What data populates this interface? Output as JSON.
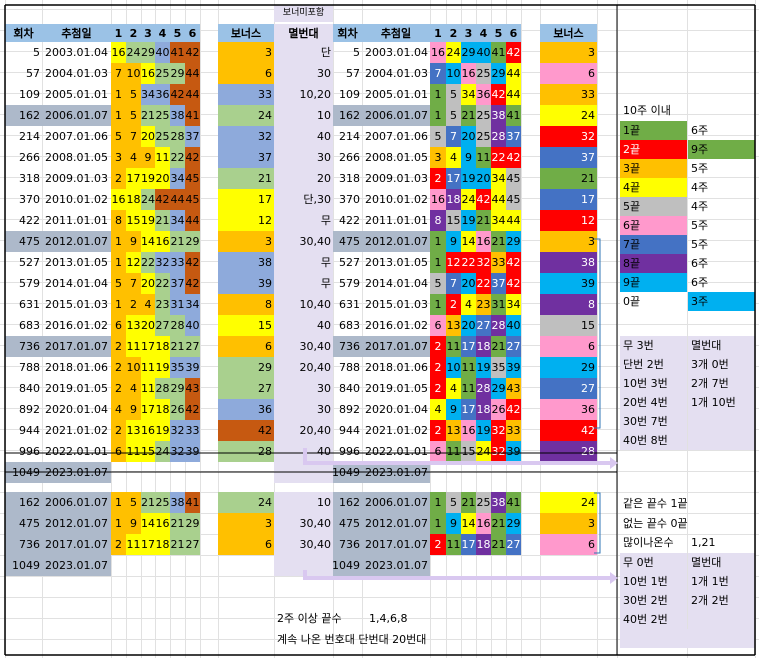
{
  "headers": {
    "round": "회차",
    "date": "추첨일",
    "n1": "1",
    "n2": "2",
    "n3": "3",
    "n4": "4",
    "n5": "5",
    "n6": "6",
    "bonus": "보너스",
    "exclude": "멸번대",
    "bonus_note": "보너미포함"
  },
  "colors": {
    "c1": "#70ad47",
    "c2": "#ff0000",
    "c3": "#ffc000",
    "c4": "#ffff00",
    "c5": "#bfbfbf",
    "c6": "#ff99cc",
    "c7": "#4472c4",
    "c8": "#7030a0",
    "c9": "#00b0f0",
    "c0": "#00b0f0",
    "yellow": "#ffff00",
    "gold": "#ffc000",
    "blue": "#8eaadb",
    "green": "#a9d08e",
    "brown": "#c65911",
    "lav": "#e4dff1",
    "grey": "#adb9ca",
    "header_blue": "#9bc2e6"
  },
  "rows": [
    {
      "round": "5",
      "date": "2003.01.04",
      "nums": [
        "16",
        "24",
        "29",
        "40",
        "41",
        "42"
      ],
      "bonus": "3",
      "excl": "단",
      "hl": false
    },
    {
      "round": "57",
      "date": "2004.01.03",
      "nums": [
        "7",
        "10",
        "16",
        "25",
        "29",
        "44"
      ],
      "bonus": "6",
      "excl": "30",
      "hl": false
    },
    {
      "round": "109",
      "date": "2005.01.01",
      "nums": [
        "1",
        "5",
        "34",
        "36",
        "42",
        "44"
      ],
      "bonus": "33",
      "excl": "10,20",
      "hl": false
    },
    {
      "round": "162",
      "date": "2006.01.07",
      "nums": [
        "1",
        "5",
        "21",
        "25",
        "38",
        "41"
      ],
      "bonus": "24",
      "excl": "10",
      "hl": true
    },
    {
      "round": "214",
      "date": "2007.01.06",
      "nums": [
        "5",
        "7",
        "20",
        "25",
        "28",
        "37"
      ],
      "bonus": "32",
      "excl": "40",
      "hl": false
    },
    {
      "round": "266",
      "date": "2008.01.05",
      "nums": [
        "3",
        "4",
        "9",
        "11",
        "22",
        "42"
      ],
      "bonus": "37",
      "excl": "30",
      "hl": false
    },
    {
      "round": "318",
      "date": "2009.01.03",
      "nums": [
        "2",
        "17",
        "19",
        "20",
        "34",
        "45"
      ],
      "bonus": "21",
      "excl": "20",
      "hl": false
    },
    {
      "round": "370",
      "date": "2010.01.02",
      "nums": [
        "16",
        "18",
        "24",
        "42",
        "44",
        "45"
      ],
      "bonus": "17",
      "excl": "단,30",
      "hl": false
    },
    {
      "round": "422",
      "date": "2011.01.01",
      "nums": [
        "8",
        "15",
        "19",
        "21",
        "34",
        "44"
      ],
      "bonus": "12",
      "excl": "무",
      "hl": false
    },
    {
      "round": "475",
      "date": "2012.01.07",
      "nums": [
        "1",
        "9",
        "14",
        "16",
        "21",
        "29"
      ],
      "bonus": "3",
      "excl": "30,40",
      "hl": true
    },
    {
      "round": "527",
      "date": "2013.01.05",
      "nums": [
        "1",
        "12",
        "22",
        "32",
        "33",
        "42"
      ],
      "bonus": "38",
      "excl": "무",
      "hl": false
    },
    {
      "round": "579",
      "date": "2014.01.04",
      "nums": [
        "5",
        "7",
        "20",
        "22",
        "37",
        "42"
      ],
      "bonus": "39",
      "excl": "무",
      "hl": false
    },
    {
      "round": "631",
      "date": "2015.01.03",
      "nums": [
        "1",
        "2",
        "4",
        "23",
        "31",
        "34"
      ],
      "bonus": "8",
      "excl": "10,40",
      "hl": false
    },
    {
      "round": "683",
      "date": "2016.01.02",
      "nums": [
        "6",
        "13",
        "20",
        "27",
        "28",
        "40"
      ],
      "bonus": "15",
      "excl": "40",
      "hl": false
    },
    {
      "round": "736",
      "date": "2017.01.07",
      "nums": [
        "2",
        "11",
        "17",
        "18",
        "21",
        "27"
      ],
      "bonus": "6",
      "excl": "30,40",
      "hl": true
    },
    {
      "round": "788",
      "date": "2018.01.06",
      "nums": [
        "2",
        "10",
        "11",
        "19",
        "35",
        "39"
      ],
      "bonus": "29",
      "excl": "20,40",
      "hl": false
    },
    {
      "round": "840",
      "date": "2019.01.05",
      "nums": [
        "2",
        "4",
        "11",
        "28",
        "29",
        "43"
      ],
      "bonus": "27",
      "excl": "30",
      "hl": false
    },
    {
      "round": "892",
      "date": "2020.01.04",
      "nums": [
        "4",
        "9",
        "17",
        "18",
        "26",
        "42"
      ],
      "bonus": "36",
      "excl": "30",
      "hl": false
    },
    {
      "round": "944",
      "date": "2021.01.02",
      "nums": [
        "2",
        "13",
        "16",
        "19",
        "32",
        "33"
      ],
      "bonus": "42",
      "excl": "20,40",
      "hl": false
    },
    {
      "round": "996",
      "date": "2022.01.01",
      "nums": [
        "6",
        "11",
        "15",
        "24",
        "32",
        "39"
      ],
      "bonus": "28",
      "excl": "40",
      "hl": false
    },
    {
      "round": "1049",
      "date": "2023.01.07",
      "nums": [
        "",
        "",
        "",
        "",
        "",
        ""
      ],
      "bonus": "",
      "excl": "",
      "hl": true
    }
  ],
  "bottom_rows": [
    {
      "round": "162",
      "date": "2006.01.07",
      "nums": [
        "1",
        "5",
        "21",
        "25",
        "38",
        "41"
      ],
      "bonus": "24",
      "excl": "10"
    },
    {
      "round": "475",
      "date": "2012.01.07",
      "nums": [
        "1",
        "9",
        "14",
        "16",
        "21",
        "29"
      ],
      "bonus": "3",
      "excl": "30,40"
    },
    {
      "round": "736",
      "date": "2017.01.07",
      "nums": [
        "2",
        "11",
        "17",
        "18",
        "21",
        "27"
      ],
      "bonus": "6",
      "excl": "30,40"
    },
    {
      "round": "1049",
      "date": "2023.01.07",
      "nums": [
        "",
        "",
        "",
        "",
        "",
        ""
      ],
      "bonus": "",
      "excl": ""
    }
  ],
  "legend": {
    "title": "10주 이내",
    "items": [
      {
        "label": "1끝",
        "count": "6주",
        "color": "#70ad47",
        "count_color": ""
      },
      {
        "label": "2끝",
        "count": "9주",
        "color": "#ff0000",
        "count_color": "#70ad47"
      },
      {
        "label": "3끝",
        "count": "5주",
        "color": "#ffc000",
        "count_color": ""
      },
      {
        "label": "4끝",
        "count": "4주",
        "color": "#ffff00",
        "count_color": ""
      },
      {
        "label": "5끝",
        "count": "4주",
        "color": "#bfbfbf",
        "count_color": ""
      },
      {
        "label": "6끝",
        "count": "5주",
        "color": "#ff99cc",
        "count_color": ""
      },
      {
        "label": "7끝",
        "count": "5주",
        "color": "#4472c4",
        "count_color": ""
      },
      {
        "label": "8끝",
        "count": "6주",
        "color": "#7030a0",
        "count_color": ""
      },
      {
        "label": "9끝",
        "count": "6주",
        "color": "#00b0f0",
        "count_color": ""
      },
      {
        "label": "0끝",
        "count": "3주",
        "color": "#ffffff",
        "count_color": "#00b0f0"
      }
    ]
  },
  "stats1": [
    [
      "무 3번",
      "멸번대"
    ],
    [
      "단번 2번",
      "3개 0번"
    ],
    [
      "10번 3번",
      "2개 7번"
    ],
    [
      "20번 4번",
      "1개 10번"
    ],
    [
      "30번 7번",
      ""
    ],
    [
      "40번 8번",
      ""
    ]
  ],
  "notes": {
    "same_end": "같은 끝수 1끝",
    "no_end": "없는 끝수 0끝",
    "frequent_label": "많이나온수",
    "frequent_value": "1,21"
  },
  "stats2": [
    [
      "무 0번",
      "멸번대"
    ],
    [
      "10번 1번",
      "1개 1번"
    ],
    [
      "30번 2번",
      "2개 2번"
    ],
    [
      "40번 2번",
      ""
    ]
  ],
  "footer": {
    "line1_label": "2주 이상 끝수",
    "line1_value": "1,4,6,8",
    "line2": "계속 나온 번호대 단번대 20번대"
  }
}
